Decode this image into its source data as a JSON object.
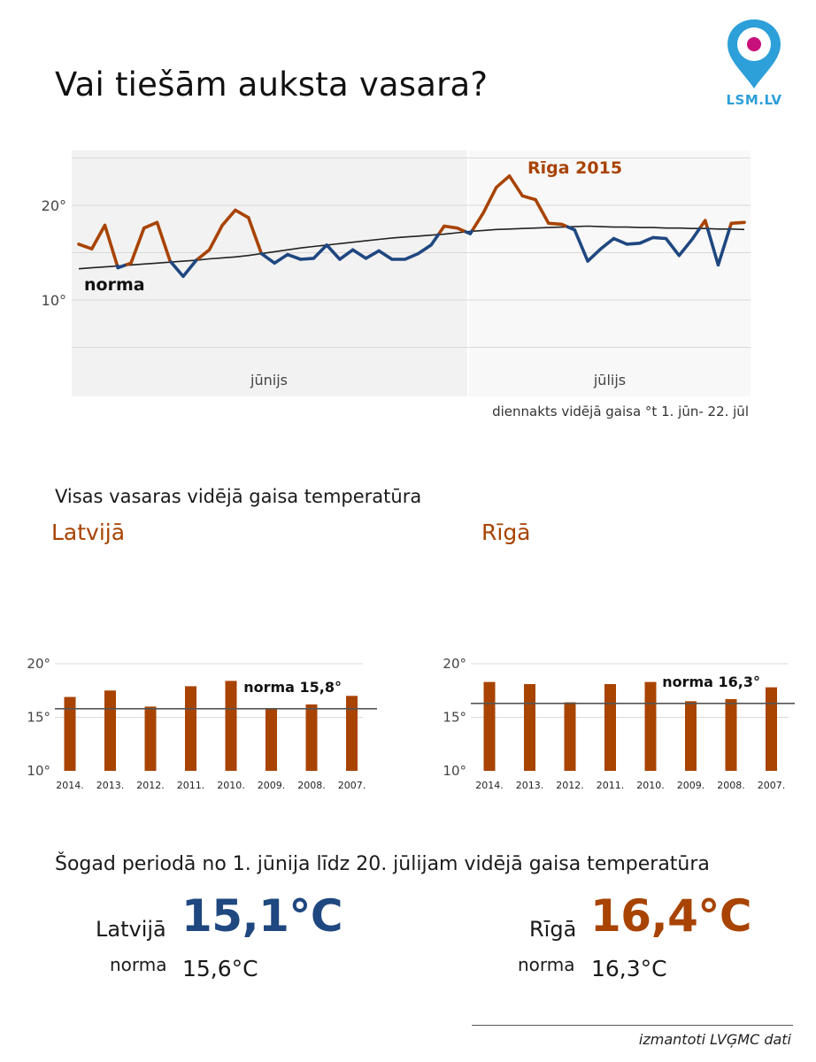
{
  "title": "Vai tiešām auksta vasara?",
  "logo": {
    "text": "LSM.LV",
    "icon": "location-pin-icon",
    "pin_color": "#2d9fd9",
    "dot_color": "#c8107a"
  },
  "colors": {
    "orange": "#a84300",
    "blue": "#1f4780",
    "norm": "#222222",
    "grid": "#d9d9d9",
    "panel_left": "#f2f2f2",
    "panel_right": "#f8f8f8"
  },
  "daily_chart": {
    "caption": "diennakts vidējā gaisa °t 1. jūn- 22. jūl",
    "series_label": "Rīga 2015",
    "norm_label": "norma",
    "month_labels": [
      "jūnijs",
      "jūlijs"
    ]
  },
  "summer_heading": "Visas vasaras vidējā gaisa temperatūra",
  "period": {
    "heading": "Šogad periodā no 1. jūnija līdz 20. jūlijam vidējā gaisa temperatūra",
    "latvia": {
      "label": "Latvijā",
      "value": "15,1°C",
      "norm_label": "norma",
      "norm_value": "15,6°C"
    },
    "riga": {
      "label": "Rīgā",
      "value": "16,4°C",
      "norm_label": "norma",
      "norm_value": "16,3°C"
    }
  },
  "source": "izmantoti LVĢMC dati",
  "chart_data": [
    {
      "type": "line",
      "x_unit": "day",
      "x_start": "1. jūn",
      "x": [
        1,
        2,
        3,
        4,
        5,
        6,
        7,
        8,
        9,
        10,
        11,
        12,
        13,
        14,
        15,
        16,
        17,
        18,
        19,
        20,
        21,
        22,
        23,
        24,
        25,
        26,
        27,
        28,
        29,
        30,
        31,
        32,
        33,
        34,
        35,
        36,
        37,
        38,
        39,
        40,
        41,
        42,
        43,
        44,
        45,
        46,
        47,
        48,
        49,
        50,
        51,
        52
      ],
      "series": [
        {
          "name": "Rīga 2015",
          "values": [
            15.9,
            15.4,
            17.9,
            13.4,
            13.9,
            17.6,
            18.2,
            14.1,
            12.5,
            14.2,
            15.3,
            17.9,
            19.5,
            18.7,
            14.9,
            13.9,
            14.8,
            14.3,
            14.4,
            15.8,
            14.3,
            15.3,
            14.4,
            15.2,
            14.3,
            14.3,
            14.9,
            15.8,
            17.8,
            17.6,
            17.0,
            19.2,
            21.9,
            23.1,
            21.0,
            20.6,
            18.1,
            18.0,
            17.4,
            14.1,
            15.4,
            16.5,
            15.9,
            16.0,
            16.6,
            16.5,
            14.7,
            16.4,
            18.4,
            13.7,
            18.1,
            18.2
          ]
        },
        {
          "name": "norma",
          "values": [
            13.3,
            13.4,
            13.5,
            13.6,
            13.7,
            13.8,
            13.9,
            14.0,
            14.1,
            14.2,
            14.35,
            14.45,
            14.55,
            14.7,
            14.9,
            15.1,
            15.3,
            15.5,
            15.65,
            15.8,
            15.95,
            16.1,
            16.25,
            16.4,
            16.55,
            16.65,
            16.75,
            16.85,
            16.95,
            17.1,
            17.25,
            17.35,
            17.45,
            17.5,
            17.55,
            17.6,
            17.65,
            17.7,
            17.75,
            17.8,
            17.75,
            17.7,
            17.7,
            17.65,
            17.65,
            17.6,
            17.6,
            17.55,
            17.55,
            17.5,
            17.5,
            17.45
          ]
        }
      ],
      "ylim": [
        5,
        25
      ],
      "yticks": [
        10,
        20
      ],
      "ytick_labels": [
        "10°",
        "20°"
      ],
      "grid": true
    },
    {
      "type": "bar",
      "title": "Latvijā",
      "categories": [
        "2014.",
        "2013.",
        "2012.",
        "2011.",
        "2010.",
        "2009.",
        "2008.",
        "2007."
      ],
      "values": [
        16.9,
        17.5,
        16.0,
        17.9,
        18.4,
        15.8,
        16.2,
        17.0
      ],
      "ylim": [
        10,
        20
      ],
      "yticks": [
        10,
        15,
        20
      ],
      "ytick_labels": [
        "10°",
        "15°",
        "20°"
      ],
      "norm": 15.8,
      "norm_label": "norma 15,8°",
      "grid": true
    },
    {
      "type": "bar",
      "title": "Rīgā",
      "categories": [
        "2014.",
        "2013.",
        "2012.",
        "2011.",
        "2010.",
        "2009.",
        "2008.",
        "2007."
      ],
      "values": [
        18.3,
        18.1,
        16.4,
        18.1,
        18.3,
        16.5,
        16.7,
        17.8
      ],
      "ylim": [
        10,
        20
      ],
      "yticks": [
        10,
        15,
        20
      ],
      "ytick_labels": [
        "10°",
        "15°",
        "20°"
      ],
      "norm": 16.3,
      "norm_label": "norma 16,3°",
      "grid": true
    }
  ]
}
